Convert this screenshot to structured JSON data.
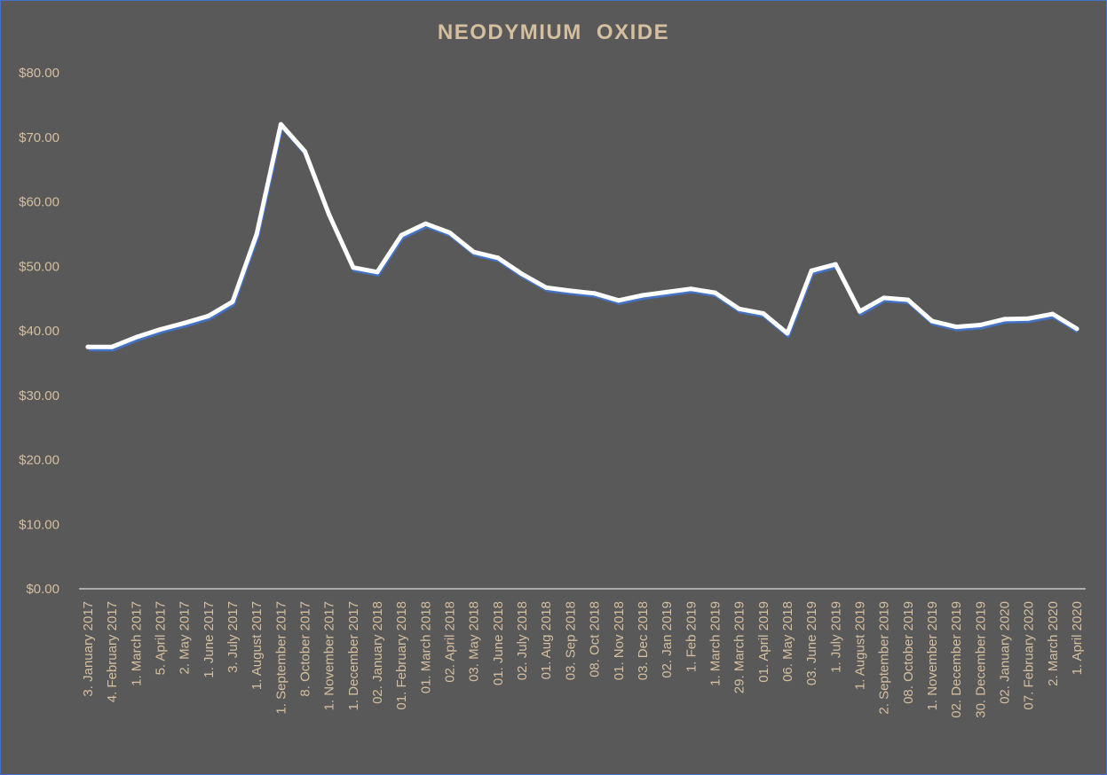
{
  "chart_data": {
    "type": "line",
    "title": "NEODYMIUM OXIDE",
    "xlabel": "",
    "ylabel": "",
    "ylim": [
      0,
      80
    ],
    "y_ticks": [
      "$0.00",
      "$10.00",
      "$20.00",
      "$30.00",
      "$40.00",
      "$50.00",
      "$60.00",
      "$70.00",
      "$80.00"
    ],
    "grid": false,
    "legend": "none",
    "colors": {
      "background": "#595959",
      "line": "#ffffff",
      "line_shadow": "#4472c4",
      "text": "#d5bf9f",
      "drop_lines": "#ffffff"
    },
    "categories": [
      "3. January 2017",
      "4. February 2017",
      "1. March 2017",
      "5. April 2017",
      "2. May 2017",
      "1. June 2017",
      "3. July 2017",
      "1. August 2017",
      "1. September 2017",
      "8. October 2017",
      "1. November 2017",
      "1. December 2017",
      "02. January 2018",
      "01. February 2018",
      "01. March 2018",
      "02. April 2018",
      "03. May 2018",
      "01. June 2018",
      "02. July 2018",
      "01. Aug 2018",
      "03. Sep 2018",
      "08. Oct 2018",
      "01. Nov 2018",
      "03. Dec 2018",
      "02. Jan 2019",
      "1. Feb 2019",
      "1. March 2019",
      "29. March 2019",
      "01. April 2019",
      "06. May 2018",
      "03. June 2019",
      "1. July 2019",
      "1. August 2019",
      "2. September 2019",
      "08. October 2019",
      "1. November 2019",
      "02. December 2019",
      "30. December 2019",
      "02. January 2020",
      "07. February 2020",
      "2. March 2020",
      "1. April 2020"
    ],
    "series": [
      {
        "values": [
          37.5,
          37.5,
          39.0,
          40.2,
          41.2,
          42.3,
          44.5,
          55.0,
          72.0,
          67.8,
          58.0,
          49.8,
          49.1,
          54.8,
          56.6,
          55.2,
          52.2,
          51.3,
          48.8,
          46.7,
          46.2,
          45.8,
          44.7,
          45.5,
          46.0,
          46.5,
          45.9,
          43.4,
          42.7,
          39.6,
          49.3,
          50.3,
          43.0,
          45.1,
          44.8,
          41.5,
          40.6,
          40.9,
          41.8,
          41.9,
          42.6,
          40.3
        ]
      }
    ]
  }
}
